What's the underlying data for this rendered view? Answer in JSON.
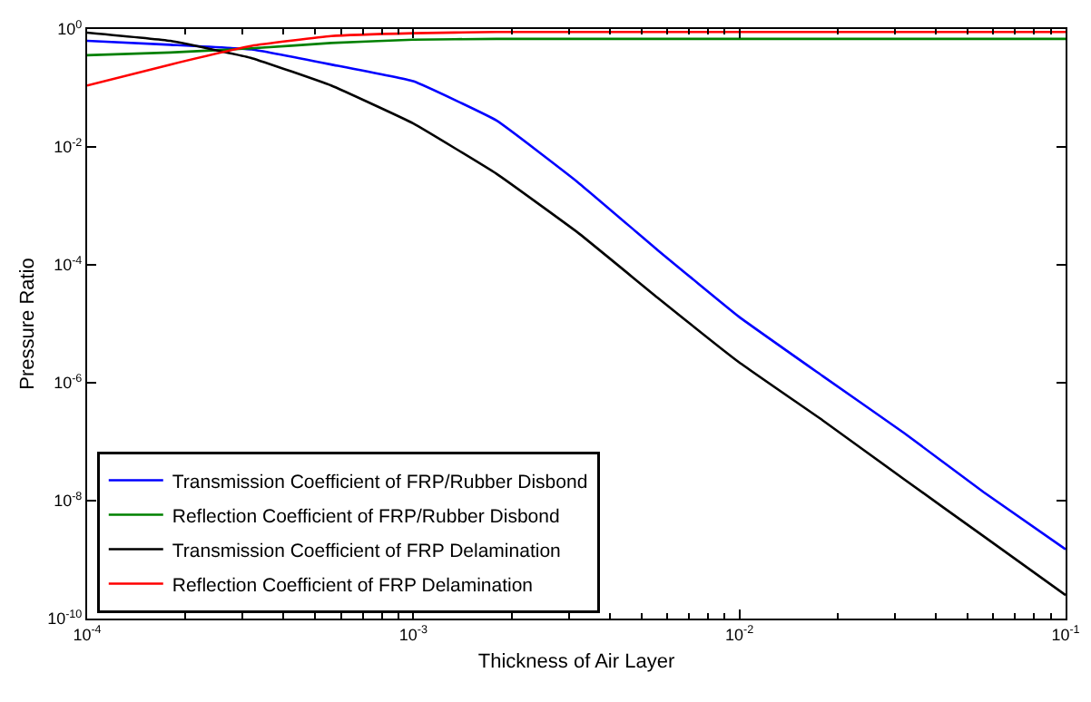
{
  "chart_data": {
    "type": "line",
    "xlabel": "Thickness of Air Layer",
    "ylabel": "Pressure Ratio",
    "log": "xy",
    "grid": false,
    "legend": "bottom left",
    "marker": "none",
    "line_style": "solid",
    "x": [
      0.0001,
      0.00018,
      0.00032,
      0.00056,
      0.001,
      0.0018,
      0.0032,
      0.0056,
      0.01,
      0.018,
      0.032,
      0.056,
      0.1
    ],
    "series": [
      {
        "name": "Transmission Coefficient of FRP/Rubber Disbond",
        "color": "#0000ff",
        "values": [
          0.63,
          0.54,
          0.45,
          0.25,
          0.13,
          0.028,
          0.0025,
          0.00018,
          1.3e-05,
          1.3e-06,
          1.4e-07,
          1.4e-08,
          1.5e-09
        ]
      },
      {
        "name": "Reflection Coefficient of FRP/Rubber Disbond",
        "color": "#008000",
        "values": [
          0.36,
          0.4,
          0.47,
          0.58,
          0.66,
          0.68,
          0.68,
          0.68,
          0.68,
          0.68,
          0.68,
          0.68,
          0.68
        ]
      },
      {
        "name": "Transmission Coefficient of FRP Delamination",
        "color": "#000000",
        "values": [
          0.87,
          0.63,
          0.32,
          0.11,
          0.025,
          0.0035,
          0.00035,
          2.8e-05,
          2.2e-06,
          2.3e-07,
          2.3e-08,
          2.5e-09,
          2.5e-10
        ]
      },
      {
        "name": "Reflection Coefficient of FRP Delamination",
        "color": "#ff0000",
        "values": [
          0.11,
          0.25,
          0.52,
          0.76,
          0.85,
          0.89,
          0.89,
          0.89,
          0.89,
          0.89,
          0.89,
          0.89,
          0.89
        ]
      }
    ],
    "xlim": [
      0.0001,
      0.1
    ],
    "ylim": [
      1e-10,
      1
    ],
    "xticks": [
      {
        "value": 0.0001,
        "label": "10$^{-4}$"
      },
      {
        "value": 0.001,
        "label": "10$^{-3}$"
      },
      {
        "value": 0.01,
        "label": "10$^{-2}$"
      },
      {
        "value": 0.1,
        "label": "10$^{-1}$"
      }
    ],
    "yticks": [
      {
        "value": 1e-10,
        "label": "10$^{-10}$"
      },
      {
        "value": 1e-08,
        "label": "10$^{-8}$"
      },
      {
        "value": 1e-06,
        "label": "10$^{-6}$"
      },
      {
        "value": 0.0001,
        "label": "10$^{-4}$"
      },
      {
        "value": 0.01,
        "label": "10$^{-2}$"
      },
      {
        "value": 1,
        "label": "10$^{0}$"
      }
    ]
  }
}
